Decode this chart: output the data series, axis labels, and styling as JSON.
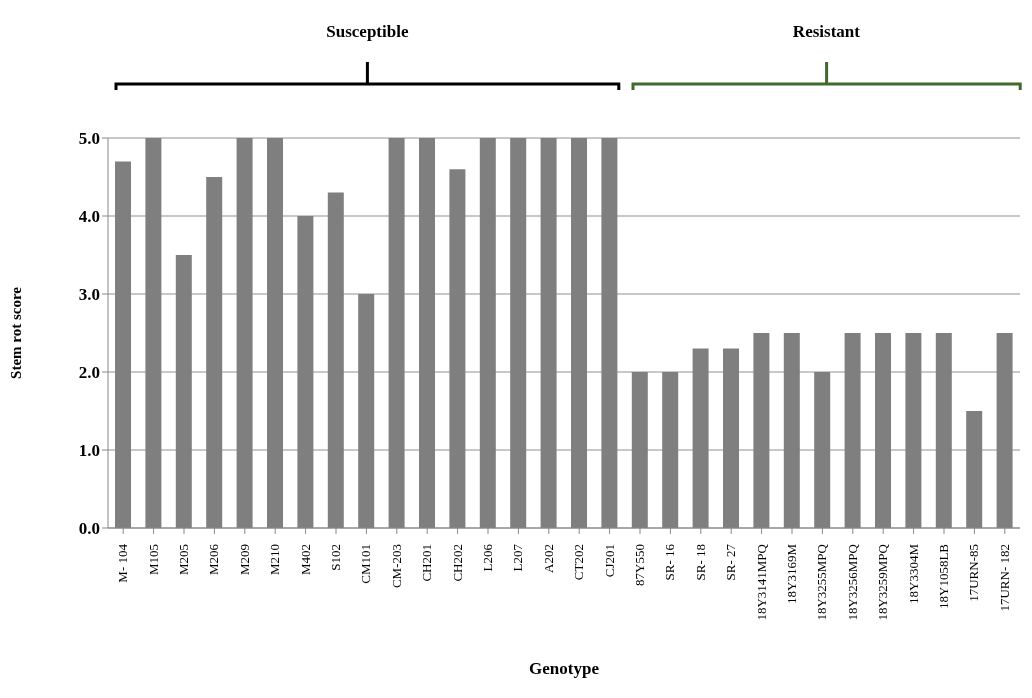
{
  "chart_data": {
    "type": "bar",
    "xlabel": "Genotype",
    "ylabel": "Stem rot score",
    "categories": [
      "M- 104",
      "M105",
      "M205",
      "M206",
      "M209",
      "M210",
      "M402",
      "S102",
      "CM101",
      "CM-203",
      "CH201",
      "CH202",
      "L206",
      "L207",
      "A202",
      "CT202",
      "CJ201",
      "87Y550",
      "SR- 16",
      "SR- 18",
      "SR- 27",
      "18Y3141MPQ",
      "18Y3169M",
      "18Y3255MPQ",
      "18Y3256MPQ",
      "18Y3259MPQ",
      "18Y3304M",
      "18Y1058LB",
      "17URN-85",
      "17URN- 182"
    ],
    "values": [
      4.7,
      5,
      3.5,
      4.5,
      5,
      5,
      4,
      4.3,
      3,
      5,
      5,
      4.6,
      5,
      5,
      5,
      5,
      5,
      2,
      2,
      2.3,
      2.3,
      2.5,
      2.5,
      2,
      2.5,
      2.5,
      2.5,
      2.5,
      1.5,
      2.5
    ],
    "color": "#7f7f7f",
    "ylim": [
      0,
      5
    ],
    "yticks": [
      {
        "value": 0,
        "label": "0.0"
      },
      {
        "value": 1,
        "label": "1.0"
      },
      {
        "value": 2,
        "label": "2.0"
      },
      {
        "value": 3,
        "label": "3.0"
      },
      {
        "value": 4,
        "label": "4.0"
      },
      {
        "value": 5,
        "label": "5.0"
      }
    ],
    "grid": "y",
    "annotations": [
      "Susceptible",
      "Resistant"
    ]
  }
}
